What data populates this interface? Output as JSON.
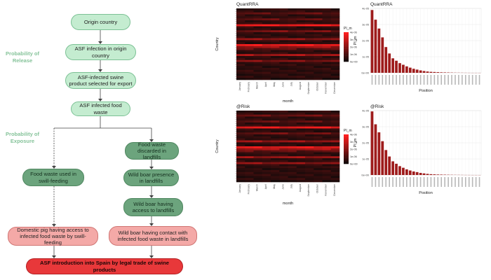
{
  "diagram": {
    "stages": {
      "release": "Probability of Release",
      "exposure": "Probability of Exposure"
    },
    "nodes": {
      "origin": "Origin country",
      "infection": "ASF infection in origin country",
      "product": "ASF-infected swine product selected for export",
      "waste": "ASF infected food waste",
      "swill": "Food waste used in swill-feeding",
      "landfill": "Food waste discarded in landfills",
      "boar_presence": "Wild boar presence in landfills",
      "boar_access": "Wild boar having access to landfills",
      "pig_access": "Domestic pig having access to infected food waste by swill-feeding",
      "boar_contact": "Wild boar having contact with infected food waste in landfills",
      "introduction": "ASF introduction into Spain by legal trade of swine products"
    }
  },
  "chart_data": [
    {
      "type": "heatmap",
      "title": "QuantRRA",
      "xlabel": "month",
      "ylabel": "Country",
      "x": [
        "January",
        "February",
        "March",
        "April",
        "May",
        "June",
        "July",
        "August",
        "September",
        "October",
        "November",
        "December"
      ],
      "legend_title": "PI_m",
      "legend_ticks": [
        "4e-06",
        "3e-06",
        "2e-06",
        "1e-06",
        "0e+00"
      ],
      "colors": {
        "low": "#000000",
        "high": "#ff2020"
      },
      "rows_bright": [
        0.2,
        0.2,
        0.3,
        0.2,
        0.2,
        0.3,
        0.2,
        0.25,
        0.95,
        0.2,
        0.15,
        0.4,
        0.2,
        0.2,
        0.2,
        0.5,
        0.2,
        0.15,
        0.9,
        0.55,
        0.3,
        0.2,
        0.2,
        0.6,
        0.2,
        0.2,
        0.45,
        0.2,
        0.2,
        0.15,
        0.2,
        0.2,
        0.2,
        0.15,
        0.2,
        0.1
      ]
    },
    {
      "type": "bar",
      "title": "QuantRRA",
      "xlabel": "Position",
      "ylabel": "PI_m",
      "y_ticks": [
        "4e-05",
        "3e-05",
        "2e-05",
        "1e-05",
        "0e+00"
      ],
      "ylim": [
        0,
        4e-05
      ],
      "values": [
        3.9e-05,
        3.3e-05,
        2.75e-05,
        2.2e-05,
        1.6e-05,
        1.2e-05,
        9e-06,
        7.5e-06,
        6e-06,
        5e-06,
        4e-06,
        3.2e-06,
        2.5e-06,
        2e-06,
        1.5e-06,
        1.1e-06,
        8e-07,
        6e-07,
        5e-07,
        4e-07,
        3e-07,
        2.5e-07,
        2e-07,
        1.5e-07,
        1e-07,
        8e-08,
        6e-08,
        4e-08,
        2e-08,
        1e-08,
        5e-09,
        3e-09
      ]
    },
    {
      "type": "heatmap",
      "title": "@Risk",
      "xlabel": "month",
      "ylabel": "Country",
      "x": [
        "January",
        "February",
        "March",
        "April",
        "May",
        "June",
        "July",
        "August",
        "September",
        "October",
        "November",
        "December"
      ],
      "legend_title": "PI_m",
      "legend_ticks": [
        "4e-06",
        "3e-06",
        "2e-06",
        "1e-06",
        "0e+00"
      ],
      "colors": {
        "low": "#000000",
        "high": "#ff2020"
      },
      "rows_bright": [
        0.2,
        0.2,
        0.35,
        0.2,
        0.2,
        0.3,
        0.2,
        0.25,
        0.9,
        0.2,
        0.15,
        0.35,
        0.2,
        0.2,
        0.2,
        0.55,
        0.2,
        0.15,
        0.85,
        0.6,
        0.3,
        0.2,
        0.2,
        0.55,
        0.2,
        0.2,
        0.5,
        0.2,
        0.2,
        0.15,
        0.2,
        0.2,
        0.2,
        0.15,
        0.2,
        0.1
      ]
    },
    {
      "type": "bar",
      "title": "@Risk",
      "xlabel": "Position",
      "ylabel": "PI_m",
      "y_ticks": [
        "4e-05",
        "3e-05",
        "2e-05",
        "1e-05",
        "0e+00"
      ],
      "ylim": [
        0,
        4e-05
      ],
      "values": [
        3.95e-05,
        3.15e-05,
        2.65e-05,
        2.1e-05,
        1.55e-05,
        1.15e-05,
        8.5e-06,
        7e-06,
        5.5e-06,
        4.5e-06,
        3.5e-06,
        2.8e-06,
        2.2e-06,
        1.8e-06,
        1.3e-06,
        1e-06,
        7e-07,
        5e-07,
        4e-07,
        3e-07,
        2.5e-07,
        2e-07,
        1.5e-07,
        1.2e-07,
        9e-08,
        7e-08,
        5e-08,
        3e-08,
        2e-08,
        1e-08,
        5e-09,
        3e-09
      ]
    }
  ]
}
